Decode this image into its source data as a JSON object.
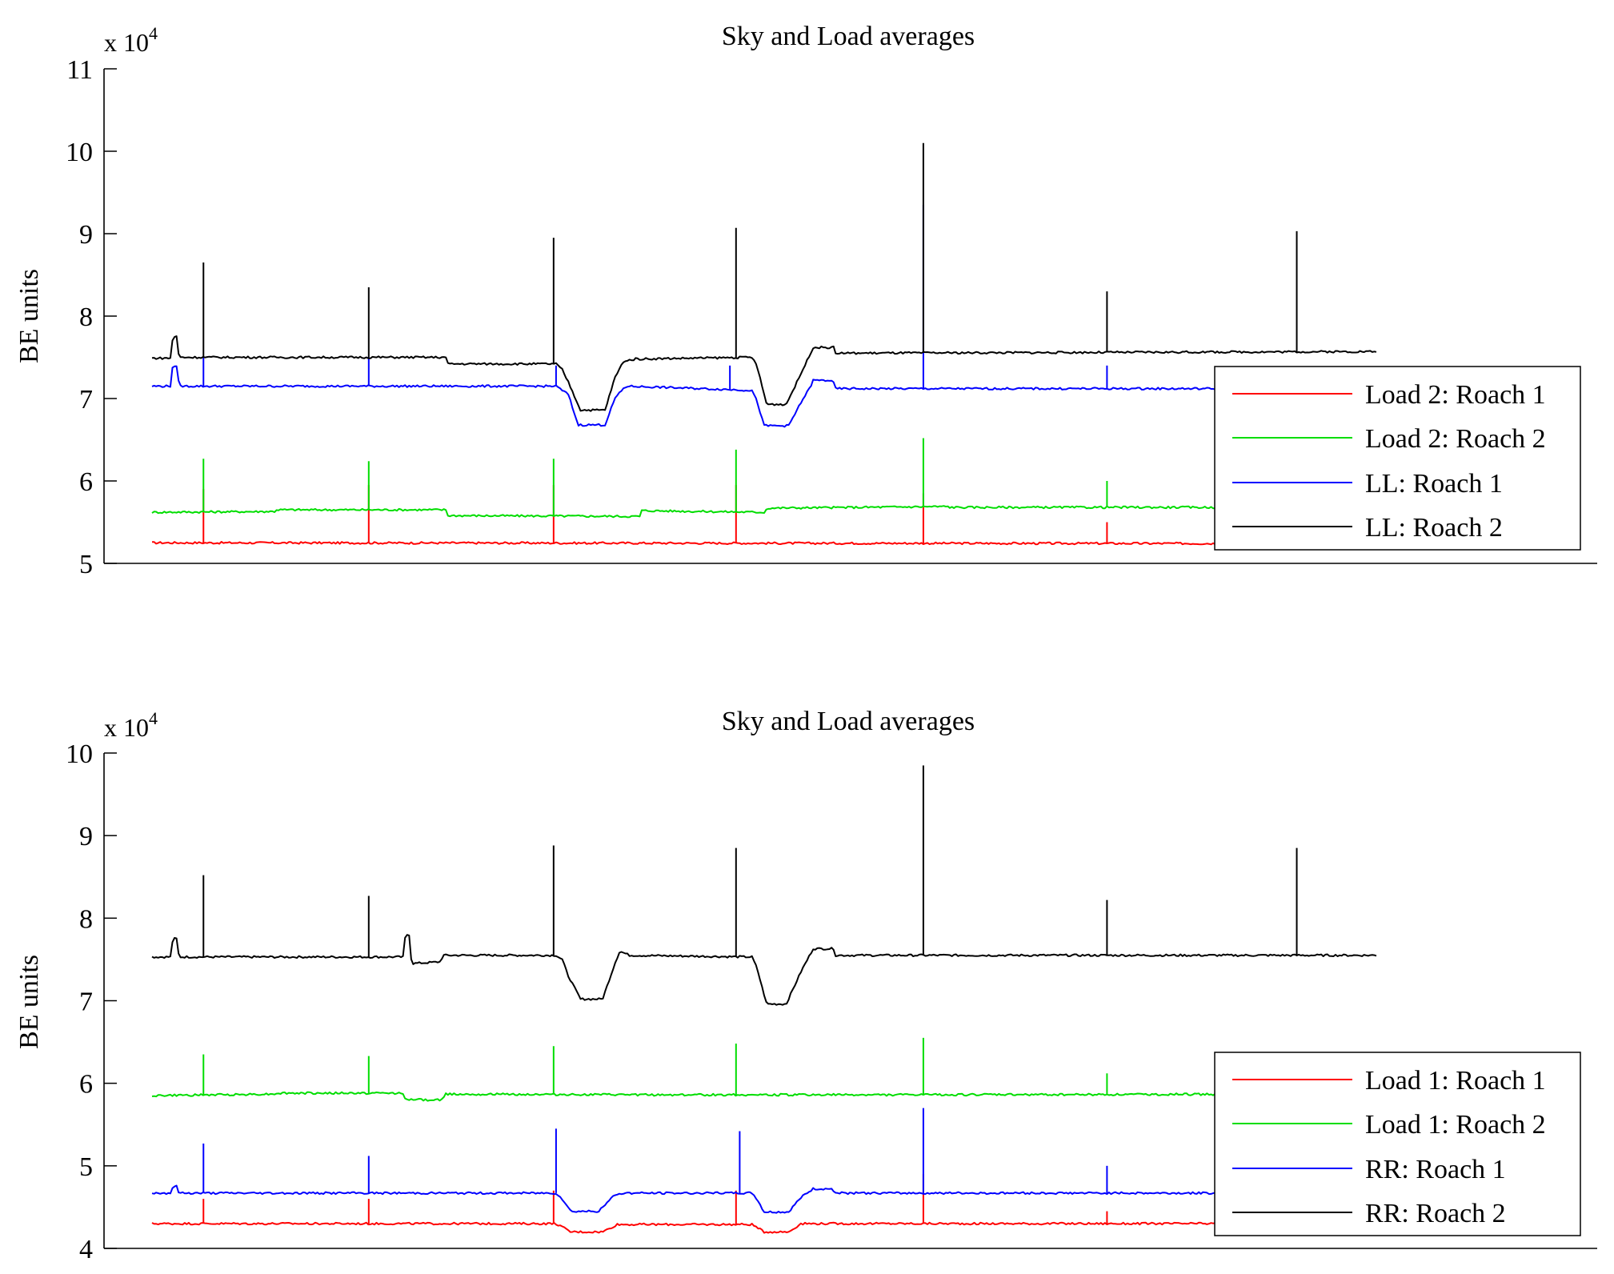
{
  "chart_data": [
    {
      "type": "line",
      "title": "Sky and Load averages",
      "ylabel": "BE units",
      "xlabel": "",
      "y_multiplier": "x 10",
      "y_multiplier_exp": "4",
      "ylim": [
        5,
        11
      ],
      "yticks": [
        5,
        6,
        7,
        8,
        9,
        10,
        11
      ],
      "xlim": [
        0,
        1000
      ],
      "legend_position": "right",
      "legend_entries": [
        "Load 2: Roach 1",
        "Load 2: Roach 2",
        "LL: Roach 1",
        "LL: Roach 2"
      ],
      "series": [
        {
          "name": "Load 2: Roach 1",
          "color": "#ff0000",
          "base": [
            [
              0,
              5.25
            ],
            [
              1000,
              5.24
            ]
          ],
          "spikes": [
            [
              42,
              5.9
            ],
            [
              177,
              5.95
            ],
            [
              328,
              5.95
            ],
            [
              477,
              5.95
            ],
            [
              630,
              5.85
            ],
            [
              780,
              5.5
            ]
          ]
        },
        {
          "name": "Load 2: Roach 2",
          "color": "#00dd00",
          "base": [
            [
              0,
              5.62
            ],
            [
              100,
              5.63
            ],
            [
              101,
              5.65
            ],
            [
              240,
              5.65
            ],
            [
              241,
              5.58
            ],
            [
              399,
              5.57
            ],
            [
              400,
              5.64
            ],
            [
              501,
              5.62
            ],
            [
              502,
              5.67
            ],
            [
              650,
              5.69
            ],
            [
              651,
              5.68
            ],
            [
              1000,
              5.68
            ]
          ],
          "spikes": [
            [
              42,
              6.27
            ],
            [
              177,
              6.24
            ],
            [
              328,
              6.27
            ],
            [
              477,
              6.38
            ],
            [
              630,
              6.52
            ],
            [
              780,
              6.0
            ]
          ]
        },
        {
          "name": "LL: Roach 1",
          "color": "#0000ff",
          "base": [
            [
              0,
              7.15
            ],
            [
              15,
              7.15
            ],
            [
              16,
              7.38
            ],
            [
              21,
              7.38
            ],
            [
              22,
              7.15
            ],
            [
              330,
              7.15
            ],
            [
              335,
              7.1
            ],
            [
              340,
              7.05
            ],
            [
              348,
              6.68
            ],
            [
              370,
              6.68
            ],
            [
              378,
              7.0
            ],
            [
              385,
              7.12
            ],
            [
              388,
              7.15
            ],
            [
              490,
              7.1
            ],
            [
              494,
              6.97
            ],
            [
              500,
              6.67
            ],
            [
              520,
              6.67
            ],
            [
              530,
              6.95
            ],
            [
              538,
              7.15
            ],
            [
              540,
              7.22
            ],
            [
              556,
              7.22
            ],
            [
              558,
              7.12
            ],
            [
              1000,
              7.12
            ]
          ],
          "spikes": [
            [
              42,
              7.5
            ],
            [
              177,
              7.5
            ],
            [
              330,
              7.4
            ],
            [
              472,
              7.4
            ],
            [
              630,
              9.35
            ],
            [
              780,
              7.4
            ]
          ]
        },
        {
          "name": "LL: Roach 2",
          "color": "#000000",
          "base": [
            [
              0,
              7.49
            ],
            [
              15,
              7.49
            ],
            [
              17,
              7.75
            ],
            [
              20,
              7.75
            ],
            [
              22,
              7.5
            ],
            [
              240,
              7.5
            ],
            [
              241,
              7.42
            ],
            [
              330,
              7.42
            ],
            [
              335,
              7.35
            ],
            [
              340,
              7.2
            ],
            [
              350,
              6.86
            ],
            [
              370,
              6.86
            ],
            [
              378,
              7.25
            ],
            [
              385,
              7.45
            ],
            [
              395,
              7.48
            ],
            [
              490,
              7.5
            ],
            [
              494,
              7.4
            ],
            [
              502,
              6.93
            ],
            [
              518,
              6.93
            ],
            [
              530,
              7.3
            ],
            [
              540,
              7.62
            ],
            [
              557,
              7.62
            ],
            [
              558,
              7.55
            ],
            [
              1000,
              7.57
            ]
          ],
          "spikes": [
            [
              42,
              8.65
            ],
            [
              177,
              8.35
            ],
            [
              328,
              8.95
            ],
            [
              477,
              9.07
            ],
            [
              630,
              10.1
            ],
            [
              780,
              8.3
            ],
            [
              935,
              9.03
            ]
          ]
        }
      ]
    },
    {
      "type": "line",
      "title": "Sky and Load averages",
      "ylabel": "BE units",
      "xlabel": "",
      "y_multiplier": "x 10",
      "y_multiplier_exp": "4",
      "ylim": [
        4,
        10
      ],
      "yticks": [
        4,
        5,
        6,
        7,
        8,
        9,
        10
      ],
      "xlim": [
        0,
        1000
      ],
      "legend_position": "right",
      "legend_entries": [
        "Load 1: Roach 1",
        "Load 1: Roach 2",
        "RR: Roach 1",
        "RR: Roach 2"
      ],
      "series": [
        {
          "name": "Load 1: Roach 1",
          "color": "#ff0000",
          "base": [
            [
              0,
              4.3
            ],
            [
              330,
              4.3
            ],
            [
              342,
              4.2
            ],
            [
              368,
              4.2
            ],
            [
              380,
              4.29
            ],
            [
              490,
              4.29
            ],
            [
              500,
              4.2
            ],
            [
              520,
              4.2
            ],
            [
              530,
              4.3
            ],
            [
              1000,
              4.3
            ]
          ],
          "spikes": [
            [
              42,
              4.6
            ],
            [
              177,
              4.6
            ],
            [
              328,
              4.7
            ],
            [
              477,
              4.7
            ],
            [
              630,
              4.9
            ],
            [
              780,
              4.45
            ]
          ]
        },
        {
          "name": "Load 1: Roach 2",
          "color": "#00dd00",
          "base": [
            [
              0,
              5.85
            ],
            [
              100,
              5.87
            ],
            [
              101,
              5.88
            ],
            [
              206,
              5.88
            ],
            [
              207,
              5.8
            ],
            [
              238,
              5.8
            ],
            [
              239,
              5.87
            ],
            [
              390,
              5.86
            ],
            [
              600,
              5.86
            ],
            [
              1000,
              5.87
            ]
          ],
          "spikes": [
            [
              42,
              6.35
            ],
            [
              177,
              6.33
            ],
            [
              328,
              6.45
            ],
            [
              477,
              6.48
            ],
            [
              630,
              6.55
            ],
            [
              780,
              6.12
            ]
          ]
        },
        {
          "name": "RR: Roach 1",
          "color": "#0000ff",
          "base": [
            [
              0,
              4.67
            ],
            [
              15,
              4.67
            ],
            [
              17,
              4.75
            ],
            [
              20,
              4.75
            ],
            [
              22,
              4.67
            ],
            [
              330,
              4.67
            ],
            [
              335,
              4.6
            ],
            [
              342,
              4.45
            ],
            [
              365,
              4.45
            ],
            [
              378,
              4.65
            ],
            [
              385,
              4.67
            ],
            [
              490,
              4.67
            ],
            [
              494,
              4.6
            ],
            [
              500,
              4.44
            ],
            [
              520,
              4.44
            ],
            [
              530,
              4.62
            ],
            [
              540,
              4.72
            ],
            [
              556,
              4.72
            ],
            [
              558,
              4.67
            ],
            [
              1000,
              4.67
            ]
          ],
          "spikes": [
            [
              42,
              5.27
            ],
            [
              177,
              5.12
            ],
            [
              330,
              5.45
            ],
            [
              480,
              5.42
            ],
            [
              630,
              5.7
            ],
            [
              780,
              5.0
            ]
          ]
        },
        {
          "name": "RR: Roach 2",
          "color": "#000000",
          "base": [
            [
              0,
              7.53
            ],
            [
              15,
              7.53
            ],
            [
              17,
              7.75
            ],
            [
              20,
              7.75
            ],
            [
              22,
              7.53
            ],
            [
              205,
              7.53
            ],
            [
              207,
              7.8
            ],
            [
              210,
              7.8
            ],
            [
              212,
              7.45
            ],
            [
              235,
              7.47
            ],
            [
              238,
              7.55
            ],
            [
              330,
              7.55
            ],
            [
              335,
              7.5
            ],
            [
              340,
              7.3
            ],
            [
              350,
              7.02
            ],
            [
              368,
              7.02
            ],
            [
              378,
              7.45
            ],
            [
              382,
              7.6
            ],
            [
              390,
              7.55
            ],
            [
              490,
              7.53
            ],
            [
              494,
              7.4
            ],
            [
              502,
              6.96
            ],
            [
              518,
              6.96
            ],
            [
              530,
              7.35
            ],
            [
              540,
              7.63
            ],
            [
              557,
              7.63
            ],
            [
              558,
              7.55
            ],
            [
              1000,
              7.55
            ]
          ],
          "spikes": [
            [
              42,
              8.52
            ],
            [
              177,
              8.27
            ],
            [
              328,
              8.88
            ],
            [
              477,
              8.85
            ],
            [
              630,
              9.85
            ],
            [
              780,
              8.22
            ],
            [
              935,
              8.85
            ]
          ]
        }
      ]
    }
  ]
}
